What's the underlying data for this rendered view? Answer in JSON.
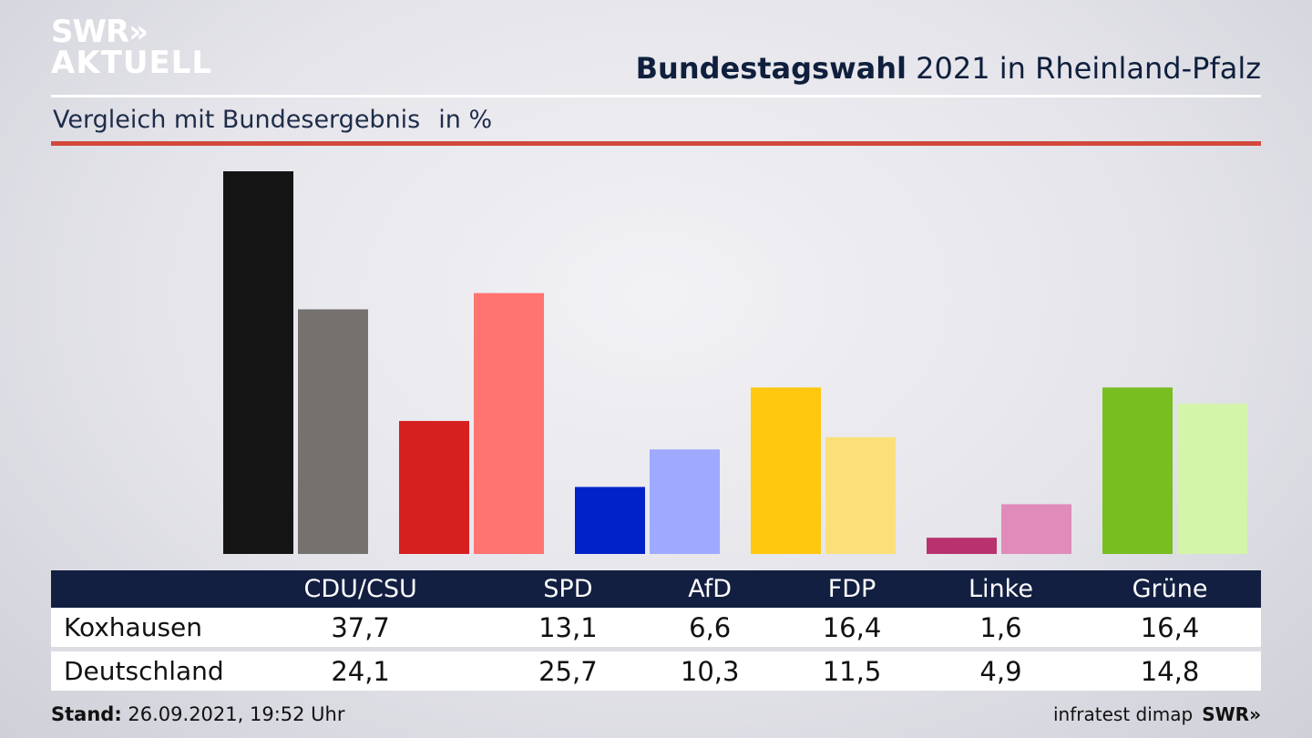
{
  "logo": {
    "line1": "SWR»",
    "line2": "AKTUELL"
  },
  "header": {
    "title_bold": "Bundestagswahl",
    "title_rest": " 2021 in Rheinland-Pfalz",
    "subtitle": "Vergleich mit Bundesergebnis",
    "unit": "in %"
  },
  "chart_data": {
    "type": "bar",
    "categories": [
      "CDU/CSU",
      "SPD",
      "AfD",
      "FDP",
      "Linke",
      "Grüne"
    ],
    "series": [
      {
        "name": "Koxhausen",
        "values": [
          37.7,
          13.1,
          6.6,
          16.4,
          1.6,
          16.4
        ]
      },
      {
        "name": "Deutschland",
        "values": [
          24.1,
          25.7,
          10.3,
          11.5,
          4.9,
          14.8
        ]
      }
    ],
    "colors": {
      "Koxhausen": [
        "#141414",
        "#d61f1f",
        "#0022c8",
        "#ffc80f",
        "#b8326e",
        "#78be20"
      ],
      "Deutschland": [
        "#74716e",
        "#ff7470",
        "#9ea9ff",
        "#fbe079",
        "#e08bba",
        "#d3f5a9"
      ]
    },
    "ylim": [
      0,
      38
    ]
  },
  "table": {
    "rows": [
      {
        "label": "Koxhausen",
        "values": [
          "37,7",
          "13,1",
          "6,6",
          "16,4",
          "1,6",
          "16,4"
        ]
      },
      {
        "label": "Deutschland",
        "values": [
          "24,1",
          "25,7",
          "10,3",
          "11,5",
          "4,9",
          "14,8"
        ]
      }
    ]
  },
  "footer": {
    "stand_label": "Stand:",
    "stand_value": " 26.09.2021, 19:52 Uhr",
    "source": "infratest dimap",
    "brand": "SWR»"
  }
}
